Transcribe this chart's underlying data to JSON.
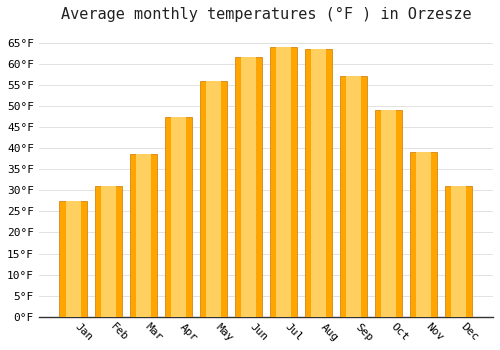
{
  "title": "Average monthly temperatures (°F ) in Orzesze",
  "months": [
    "Jan",
    "Feb",
    "Mar",
    "Apr",
    "May",
    "Jun",
    "Jul",
    "Aug",
    "Sep",
    "Oct",
    "Nov",
    "Dec"
  ],
  "values": [
    27.5,
    31.0,
    38.5,
    47.5,
    56.0,
    61.5,
    64.0,
    63.5,
    57.0,
    49.0,
    39.0,
    31.0
  ],
  "bar_color_main": "#FFA500",
  "bar_color_light": "#FFD060",
  "bar_edge_color": "#CC7700",
  "ylim": [
    0,
    68
  ],
  "yticks": [
    0,
    5,
    10,
    15,
    20,
    25,
    30,
    35,
    40,
    45,
    50,
    55,
    60,
    65
  ],
  "background_color": "#FFFFFF",
  "grid_color": "#DDDDDD",
  "title_fontsize": 11,
  "tick_fontsize": 8,
  "font_family": "monospace"
}
